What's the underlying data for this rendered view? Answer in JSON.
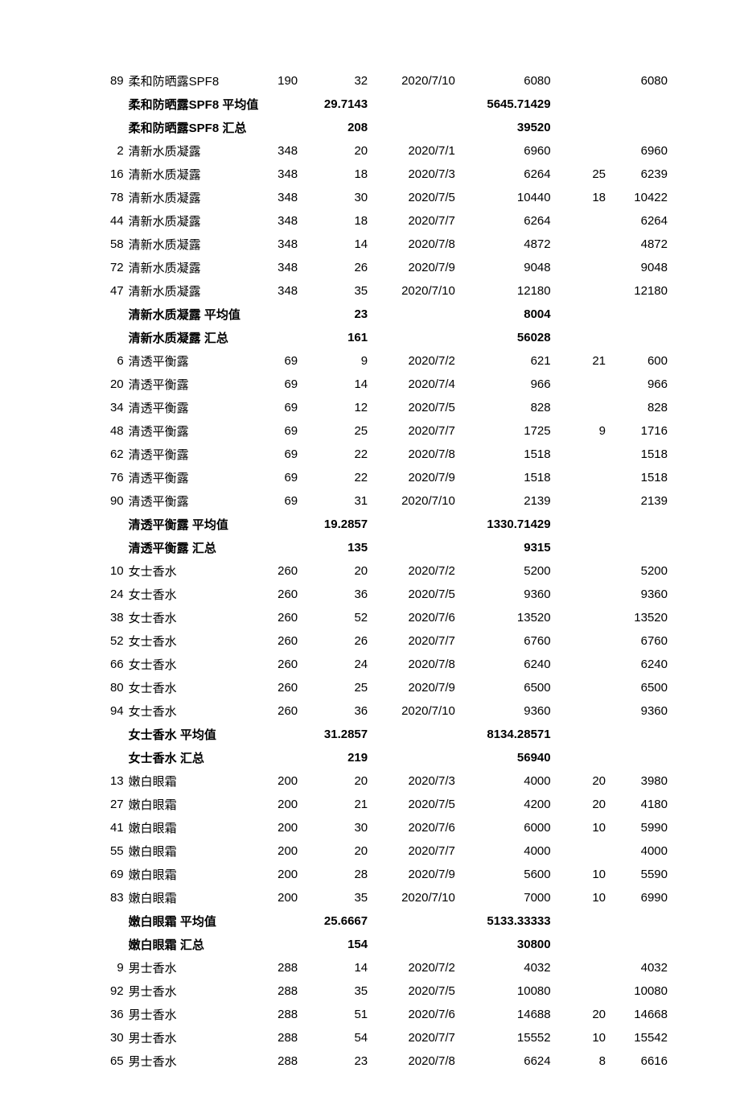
{
  "summary_suffix_avg": " 平均值",
  "summary_suffix_sum": " 汇总",
  "groups": [
    {
      "name": "柔和防晒露SPF8",
      "rows": [
        {
          "id": "89",
          "name": "柔和防晒露SPF8",
          "u": "190",
          "q": "32",
          "d": "2020/7/10",
          "a": "6080",
          "x": "",
          "n": "6080"
        }
      ],
      "avg": {
        "q": "29.7143",
        "a": "5645.71429"
      },
      "sum": {
        "q": "208",
        "a": "39520"
      }
    },
    {
      "name": "清新水质凝露",
      "rows": [
        {
          "id": "2",
          "name": "清新水质凝露",
          "u": "348",
          "q": "20",
          "d": "2020/7/1",
          "a": "6960",
          "x": "",
          "n": "6960"
        },
        {
          "id": "16",
          "name": "清新水质凝露",
          "u": "348",
          "q": "18",
          "d": "2020/7/3",
          "a": "6264",
          "x": "25",
          "n": "6239"
        },
        {
          "id": "78",
          "name": "清新水质凝露",
          "u": "348",
          "q": "30",
          "d": "2020/7/5",
          "a": "10440",
          "x": "18",
          "n": "10422"
        },
        {
          "id": "44",
          "name": "清新水质凝露",
          "u": "348",
          "q": "18",
          "d": "2020/7/7",
          "a": "6264",
          "x": "",
          "n": "6264"
        },
        {
          "id": "58",
          "name": "清新水质凝露",
          "u": "348",
          "q": "14",
          "d": "2020/7/8",
          "a": "4872",
          "x": "",
          "n": "4872"
        },
        {
          "id": "72",
          "name": "清新水质凝露",
          "u": "348",
          "q": "26",
          "d": "2020/7/9",
          "a": "9048",
          "x": "",
          "n": "9048"
        },
        {
          "id": "47",
          "name": "清新水质凝露",
          "u": "348",
          "q": "35",
          "d": "2020/7/10",
          "a": "12180",
          "x": "",
          "n": "12180"
        }
      ],
      "avg": {
        "q": "23",
        "a": "8004"
      },
      "sum": {
        "q": "161",
        "a": "56028"
      }
    },
    {
      "name": "清透平衡露",
      "rows": [
        {
          "id": "6",
          "name": "清透平衡露",
          "u": "69",
          "q": "9",
          "d": "2020/7/2",
          "a": "621",
          "x": "21",
          "n": "600"
        },
        {
          "id": "20",
          "name": "清透平衡露",
          "u": "69",
          "q": "14",
          "d": "2020/7/4",
          "a": "966",
          "x": "",
          "n": "966"
        },
        {
          "id": "34",
          "name": "清透平衡露",
          "u": "69",
          "q": "12",
          "d": "2020/7/5",
          "a": "828",
          "x": "",
          "n": "828"
        },
        {
          "id": "48",
          "name": "清透平衡露",
          "u": "69",
          "q": "25",
          "d": "2020/7/7",
          "a": "1725",
          "x": "9",
          "n": "1716"
        },
        {
          "id": "62",
          "name": "清透平衡露",
          "u": "69",
          "q": "22",
          "d": "2020/7/8",
          "a": "1518",
          "x": "",
          "n": "1518"
        },
        {
          "id": "76",
          "name": "清透平衡露",
          "u": "69",
          "q": "22",
          "d": "2020/7/9",
          "a": "1518",
          "x": "",
          "n": "1518"
        },
        {
          "id": "90",
          "name": "清透平衡露",
          "u": "69",
          "q": "31",
          "d": "2020/7/10",
          "a": "2139",
          "x": "",
          "n": "2139"
        }
      ],
      "avg": {
        "q": "19.2857",
        "a": "1330.71429"
      },
      "sum": {
        "q": "135",
        "a": "9315"
      }
    },
    {
      "name": "女士香水",
      "rows": [
        {
          "id": "10",
          "name": "女士香水",
          "u": "260",
          "q": "20",
          "d": "2020/7/2",
          "a": "5200",
          "x": "",
          "n": "5200"
        },
        {
          "id": "24",
          "name": "女士香水",
          "u": "260",
          "q": "36",
          "d": "2020/7/5",
          "a": "9360",
          "x": "",
          "n": "9360"
        },
        {
          "id": "38",
          "name": "女士香水",
          "u": "260",
          "q": "52",
          "d": "2020/7/6",
          "a": "13520",
          "x": "",
          "n": "13520"
        },
        {
          "id": "52",
          "name": "女士香水",
          "u": "260",
          "q": "26",
          "d": "2020/7/7",
          "a": "6760",
          "x": "",
          "n": "6760"
        },
        {
          "id": "66",
          "name": "女士香水",
          "u": "260",
          "q": "24",
          "d": "2020/7/8",
          "a": "6240",
          "x": "",
          "n": "6240"
        },
        {
          "id": "80",
          "name": "女士香水",
          "u": "260",
          "q": "25",
          "d": "2020/7/9",
          "a": "6500",
          "x": "",
          "n": "6500"
        },
        {
          "id": "94",
          "name": "女士香水",
          "u": "260",
          "q": "36",
          "d": "2020/7/10",
          "a": "9360",
          "x": "",
          "n": "9360"
        }
      ],
      "avg": {
        "q": "31.2857",
        "a": "8134.28571"
      },
      "sum": {
        "q": "219",
        "a": "56940"
      }
    },
    {
      "name": "嫩白眼霜",
      "rows": [
        {
          "id": "13",
          "name": "嫩白眼霜",
          "u": "200",
          "q": "20",
          "d": "2020/7/3",
          "a": "4000",
          "x": "20",
          "n": "3980"
        },
        {
          "id": "27",
          "name": "嫩白眼霜",
          "u": "200",
          "q": "21",
          "d": "2020/7/5",
          "a": "4200",
          "x": "20",
          "n": "4180"
        },
        {
          "id": "41",
          "name": "嫩白眼霜",
          "u": "200",
          "q": "30",
          "d": "2020/7/6",
          "a": "6000",
          "x": "10",
          "n": "5990"
        },
        {
          "id": "55",
          "name": "嫩白眼霜",
          "u": "200",
          "q": "20",
          "d": "2020/7/7",
          "a": "4000",
          "x": "",
          "n": "4000"
        },
        {
          "id": "69",
          "name": "嫩白眼霜",
          "u": "200",
          "q": "28",
          "d": "2020/7/9",
          "a": "5600",
          "x": "10",
          "n": "5590"
        },
        {
          "id": "83",
          "name": "嫩白眼霜",
          "u": "200",
          "q": "35",
          "d": "2020/7/10",
          "a": "7000",
          "x": "10",
          "n": "6990"
        }
      ],
      "avg": {
        "q": "25.6667",
        "a": "5133.33333"
      },
      "sum": {
        "q": "154",
        "a": "30800"
      }
    },
    {
      "name": "男士香水",
      "rows": [
        {
          "id": "9",
          "name": "男士香水",
          "u": "288",
          "q": "14",
          "d": "2020/7/2",
          "a": "4032",
          "x": "",
          "n": "4032"
        },
        {
          "id": "92",
          "name": "男士香水",
          "u": "288",
          "q": "35",
          "d": "2020/7/5",
          "a": "10080",
          "x": "",
          "n": "10080"
        },
        {
          "id": "36",
          "name": "男士香水",
          "u": "288",
          "q": "51",
          "d": "2020/7/6",
          "a": "14688",
          "x": "20",
          "n": "14668"
        },
        {
          "id": "30",
          "name": "男士香水",
          "u": "288",
          "q": "54",
          "d": "2020/7/7",
          "a": "15552",
          "x": "10",
          "n": "15542"
        },
        {
          "id": "65",
          "name": "男士香水",
          "u": "288",
          "q": "23",
          "d": "2020/7/8",
          "a": "6624",
          "x": "8",
          "n": "6616"
        }
      ]
    }
  ]
}
